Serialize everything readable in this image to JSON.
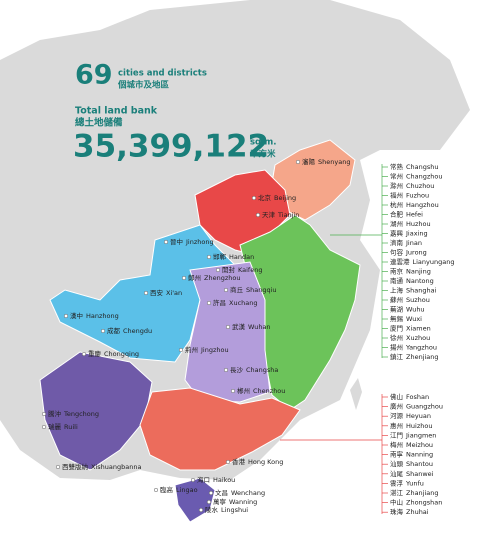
{
  "headline": {
    "count": "69",
    "count_en": "cities and districts",
    "count_cn": "個城市及地區",
    "land_en": "Total land bank",
    "land_cn": "總土地儲備",
    "area": "35,399,122",
    "unit_en": "sq.m.",
    "unit_cn": "平方米"
  },
  "map_labels": [
    {
      "cn": "瀋陽",
      "en": "Shenyang"
    },
    {
      "cn": "北京",
      "en": "Beijing"
    },
    {
      "cn": "天津",
      "en": "Tianjin"
    },
    {
      "cn": "晉中",
      "en": "Jinzhong"
    },
    {
      "cn": "邯鄲",
      "en": "Handan"
    },
    {
      "cn": "開封",
      "en": "Kaifeng"
    },
    {
      "cn": "鄭州",
      "en": "Zhengzhou"
    },
    {
      "cn": "商丘",
      "en": "Shangqiu"
    },
    {
      "cn": "許昌",
      "en": "Xuchang"
    },
    {
      "cn": "西安",
      "en": "Xi'an"
    },
    {
      "cn": "漢中",
      "en": "Hanzhong"
    },
    {
      "cn": "成都",
      "en": "Chengdu"
    },
    {
      "cn": "重慶",
      "en": "Chongqing"
    },
    {
      "cn": "武漢",
      "en": "Wuhan"
    },
    {
      "cn": "荊州",
      "en": "Jingzhou"
    },
    {
      "cn": "長沙",
      "en": "Changsha"
    },
    {
      "cn": "郴州",
      "en": "Chenzhou"
    },
    {
      "cn": "騰沖",
      "en": "Tengchong"
    },
    {
      "cn": "瑞麗",
      "en": "Ruili"
    },
    {
      "cn": "西雙版納",
      "en": "Xishuangbanna"
    },
    {
      "cn": "香港",
      "en": "Hong Kong"
    },
    {
      "cn": "海口",
      "en": "Haikou"
    },
    {
      "cn": "臨高",
      "en": "Lingao"
    },
    {
      "cn": "文昌",
      "en": "Wenchang"
    },
    {
      "cn": "萬寧",
      "en": "Wanning"
    },
    {
      "cn": "陵水",
      "en": "Lingshui"
    }
  ],
  "east_list": [
    {
      "cn": "常熟",
      "en": "Changshu"
    },
    {
      "cn": "常州",
      "en": "Changzhou"
    },
    {
      "cn": "滁州",
      "en": "Chuzhou"
    },
    {
      "cn": "福州",
      "en": "Fuzhou"
    },
    {
      "cn": "杭州",
      "en": "Hangzhou"
    },
    {
      "cn": "合肥",
      "en": "Hefei"
    },
    {
      "cn": "湖州",
      "en": "Huzhou"
    },
    {
      "cn": "嘉興",
      "en": "Jiaxing"
    },
    {
      "cn": "濟南",
      "en": "Jinan"
    },
    {
      "cn": "句容",
      "en": "Jurong"
    },
    {
      "cn": "連雲港",
      "en": "Lianyungang"
    },
    {
      "cn": "南京",
      "en": "Nanjing"
    },
    {
      "cn": "南通",
      "en": "Nantong"
    },
    {
      "cn": "上海",
      "en": "Shanghai"
    },
    {
      "cn": "蘇州",
      "en": "Suzhou"
    },
    {
      "cn": "蕪湖",
      "en": "Wuhu"
    },
    {
      "cn": "無錫",
      "en": "Wuxi"
    },
    {
      "cn": "廈門",
      "en": "Xiamen"
    },
    {
      "cn": "徐州",
      "en": "Xuzhou"
    },
    {
      "cn": "揚州",
      "en": "Yangzhou"
    },
    {
      "cn": "鎮江",
      "en": "Zhenjiang"
    }
  ],
  "south_list": [
    {
      "cn": "佛山",
      "en": "Foshan"
    },
    {
      "cn": "廣州",
      "en": "Guangzhou"
    },
    {
      "cn": "河源",
      "en": "Heyuan"
    },
    {
      "cn": "惠州",
      "en": "Huizhou"
    },
    {
      "cn": "江門",
      "en": "Jiangmen"
    },
    {
      "cn": "梅州",
      "en": "Meizhou"
    },
    {
      "cn": "南寧",
      "en": "Nanning"
    },
    {
      "cn": "汕頭",
      "en": "Shantou"
    },
    {
      "cn": "汕尾",
      "en": "Shanwei"
    },
    {
      "cn": "雲浮",
      "en": "Yunfu"
    },
    {
      "cn": "湛江",
      "en": "Zhanjiang"
    },
    {
      "cn": "中山",
      "en": "Zhongshan"
    },
    {
      "cn": "珠海",
      "en": "Zhuhai"
    }
  ]
}
